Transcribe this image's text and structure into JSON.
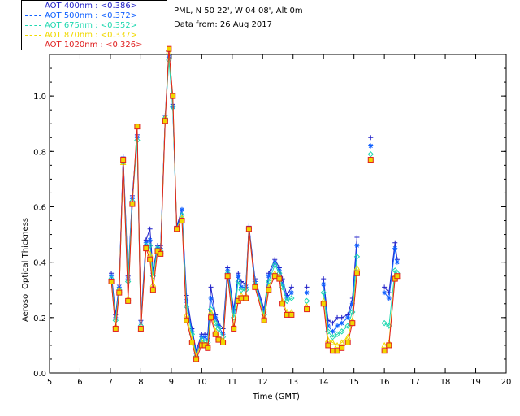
{
  "header": {
    "station": "PML, N 50 22', W 04 08', Alt 0m",
    "date_text": "Data from: 26 Aug 2017"
  },
  "legend": [
    {
      "label": "AOT  400nm : <0.386>",
      "color": "#2020c8",
      "marker": "plus"
    },
    {
      "label": "AOT  500nm : <0.372>",
      "color": "#1060ff",
      "marker": "star"
    },
    {
      "label": "AOT  675nm : <0.352>",
      "color": "#20d8b0",
      "marker": "diamond"
    },
    {
      "label": "AOT  870nm : <0.337>",
      "color": "#f0d800",
      "marker": "triangle"
    },
    {
      "label": "AOT 1020nm : <0.326>",
      "color": "#e02020",
      "marker": "square"
    }
  ],
  "chart_data": {
    "type": "line",
    "xlabel": "Time (GMT)",
    "ylabel": "Aerosol Optical Thickness",
    "xlim": [
      5,
      20
    ],
    "ylim": [
      0,
      1.15
    ],
    "xticks": [
      "5",
      "6",
      "7",
      "8",
      "9",
      "10",
      "11",
      "12",
      "13",
      "14",
      "15",
      "16",
      "17",
      "18",
      "19",
      "20"
    ],
    "yticks": [
      "0.0",
      "0.2",
      "0.4",
      "0.6",
      "0.8",
      "1.0"
    ],
    "x": [
      7.03,
      7.17,
      7.29,
      7.42,
      7.58,
      7.72,
      7.88,
      8.0,
      8.17,
      8.3,
      8.4,
      8.55,
      8.65,
      8.8,
      8.92,
      9.05,
      9.18,
      9.35,
      9.5,
      9.68,
      9.82,
      10.0,
      10.1,
      10.2,
      10.3,
      10.45,
      10.55,
      10.7,
      10.85,
      11.05,
      11.2,
      11.3,
      11.45,
      11.55,
      11.75,
      12.05,
      12.2,
      12.4,
      12.55,
      12.65,
      12.8,
      12.95,
      13.45,
      14.0,
      14.15,
      14.3,
      14.45,
      14.6,
      14.8,
      14.95,
      15.1,
      15.55,
      16.0,
      16.15,
      16.35,
      16.42
    ],
    "series": [
      {
        "name": "400nm",
        "values": [
          0.36,
          0.21,
          0.32,
          0.78,
          0.35,
          0.64,
          0.86,
          0.19,
          0.48,
          0.52,
          0.37,
          0.46,
          0.46,
          0.93,
          1.16,
          0.97,
          0.53,
          0.59,
          0.28,
          0.16,
          0.08,
          0.14,
          0.14,
          0.14,
          0.31,
          0.21,
          0.18,
          0.16,
          0.38,
          0.23,
          0.36,
          0.33,
          0.32,
          0.53,
          0.34,
          0.23,
          0.36,
          0.41,
          0.38,
          0.34,
          0.28,
          0.31,
          0.31,
          0.34,
          0.19,
          0.18,
          0.2,
          0.2,
          0.21,
          0.27,
          0.49,
          0.85,
          0.31,
          0.29,
          0.47,
          0.41
        ]
      },
      {
        "name": "500nm",
        "values": [
          0.35,
          0.2,
          0.31,
          0.77,
          0.34,
          0.63,
          0.85,
          0.18,
          0.47,
          0.48,
          0.36,
          0.45,
          0.45,
          0.92,
          1.14,
          0.96,
          0.52,
          0.59,
          0.26,
          0.15,
          0.07,
          0.13,
          0.13,
          0.12,
          0.27,
          0.2,
          0.17,
          0.14,
          0.37,
          0.22,
          0.35,
          0.31,
          0.31,
          0.52,
          0.33,
          0.22,
          0.35,
          0.4,
          0.37,
          0.32,
          0.27,
          0.29,
          0.29,
          0.32,
          0.17,
          0.15,
          0.17,
          0.18,
          0.2,
          0.25,
          0.46,
          0.82,
          0.29,
          0.27,
          0.45,
          0.4
        ]
      },
      {
        "name": "675nm",
        "values": [
          0.34,
          0.19,
          0.3,
          0.76,
          0.33,
          0.62,
          0.84,
          0.17,
          0.46,
          0.46,
          0.35,
          0.45,
          0.44,
          0.92,
          1.13,
          0.96,
          0.52,
          0.57,
          0.24,
          0.14,
          0.06,
          0.12,
          0.11,
          0.11,
          0.23,
          0.18,
          0.16,
          0.13,
          0.36,
          0.2,
          0.33,
          0.3,
          0.3,
          0.52,
          0.32,
          0.21,
          0.33,
          0.39,
          0.36,
          0.31,
          0.26,
          0.27,
          0.26,
          0.29,
          0.15,
          0.13,
          0.14,
          0.15,
          0.17,
          0.22,
          0.42,
          0.79,
          0.18,
          0.17,
          0.37,
          0.36
        ]
      },
      {
        "name": "870nm",
        "values": [
          0.33,
          0.17,
          0.3,
          0.76,
          0.27,
          0.61,
          0.89,
          0.16,
          0.45,
          0.43,
          0.32,
          0.44,
          0.44,
          0.92,
          1.16,
          1.0,
          0.52,
          0.56,
          0.21,
          0.12,
          0.06,
          0.11,
          0.1,
          0.1,
          0.22,
          0.15,
          0.13,
          0.12,
          0.35,
          0.17,
          0.27,
          0.28,
          0.28,
          0.52,
          0.31,
          0.2,
          0.31,
          0.36,
          0.35,
          0.26,
          0.22,
          0.22,
          0.24,
          0.26,
          0.12,
          0.11,
          0.1,
          0.11,
          0.13,
          0.19,
          0.38,
          0.77,
          0.1,
          0.11,
          0.35,
          0.35
        ]
      },
      {
        "name": "1020nm",
        "values": [
          0.33,
          0.16,
          0.29,
          0.77,
          0.26,
          0.61,
          0.89,
          0.16,
          0.45,
          0.41,
          0.3,
          0.44,
          0.43,
          0.91,
          1.17,
          1.0,
          0.52,
          0.55,
          0.19,
          0.11,
          0.05,
          0.1,
          0.1,
          0.09,
          0.2,
          0.14,
          0.12,
          0.11,
          0.35,
          0.16,
          0.26,
          0.27,
          0.27,
          0.52,
          0.31,
          0.19,
          0.3,
          0.35,
          0.34,
          0.25,
          0.21,
          0.21,
          0.23,
          0.25,
          0.1,
          0.08,
          0.08,
          0.09,
          0.11,
          0.18,
          0.36,
          0.77,
          0.08,
          0.1,
          0.34,
          0.35
        ]
      }
    ]
  }
}
